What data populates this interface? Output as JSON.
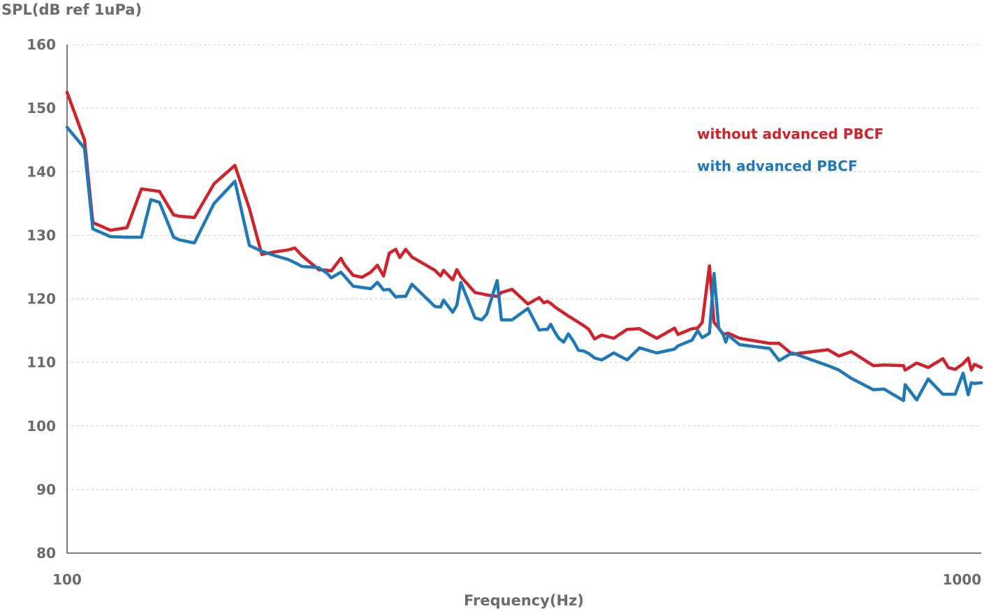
{
  "chart_data": {
    "type": "line",
    "xlabel": "Frequency(Hz)",
    "ylabel": "SPL(dB ref 1uPa)",
    "x_scale": "log",
    "xlim": [
      100,
      1000
    ],
    "ylim": [
      80,
      160
    ],
    "x_ticks": [
      "100",
      "1000"
    ],
    "y_ticks": [
      "160",
      "150",
      "140",
      "130",
      "120",
      "110",
      "100",
      "90",
      "80"
    ],
    "grid": "horizontal-dashed",
    "legend_position": "top-right",
    "series": [
      {
        "name": "without advanced PBCF",
        "color": "#d0222a",
        "x": [
          100,
          104.5,
          106.7,
          109.1,
          111.5,
          116.3,
          120.6,
          123.5,
          126.2,
          130.8,
          132.7,
          137.8,
          144.8,
          152.6,
          158.3,
          163.3,
          168.8,
          174.5,
          177.5,
          180.7,
          188.5,
          192.6,
          194.5,
          199.3,
          201.3,
          205.6,
          210.2,
          214.9,
          218.5,
          221.9,
          225.1,
          228.8,
          231.2,
          234.6,
          238.3,
          252.5,
          256.2,
          258.1,
          264.1,
          266.9,
          269.6,
          279.4,
          284.2,
          287.7,
          295.4,
          298.6,
          306.7,
          319.2,
          328.4,
          332.2,
          335.3,
          338.1,
          341.2,
          345.0,
          349.3,
          353.4,
          358.1,
          362.6,
          367.3,
          372.1,
          377.5,
          384.5,
          396.2,
          409.8,
          422.8,
          441.5,
          461.8,
          465.7,
          482.5,
          489.4,
          495.1,
          504.2,
          510.1,
          516.2,
          521.3,
          525.4,
          528.4,
          543.9,
          587.0,
          601.0,
          621.1,
          679.7,
          698.6,
          720.7,
          761.7,
          782.9,
          822.1,
          825.4,
          849.9,
          874.7,
          907.7,
          920.2,
          936.1,
          955.2,
          967.5,
          975.1,
          982.8,
          1000
        ],
        "y": [
          152.5,
          145,
          132,
          131.4,
          130.8,
          131.2,
          137.3,
          137.1,
          136.9,
          133.2,
          133,
          132.8,
          138.1,
          141,
          134.2,
          127,
          127.4,
          127.7,
          128,
          126.8,
          124.6,
          124.5,
          124.4,
          126.4,
          125.3,
          123.7,
          123.4,
          124.2,
          125.3,
          123.6,
          127.2,
          127.8,
          126.5,
          127.8,
          126.6,
          124.5,
          123.6,
          124.5,
          123,
          124.6,
          123.5,
          121,
          120.8,
          120.6,
          120.4,
          121,
          121.5,
          119.2,
          120.2,
          119.4,
          119.6,
          119.3,
          118.8,
          118.3,
          117.8,
          117.3,
          116.8,
          116.3,
          115.8,
          115.2,
          113.7,
          114.3,
          113.8,
          115.2,
          115.3,
          113.8,
          115.4,
          114.4,
          115.3,
          115.4,
          116.3,
          125.2,
          116.3,
          115.4,
          114.5,
          114.5,
          114.6,
          113.8,
          113,
          113,
          111.3,
          112,
          111,
          111.7,
          109.5,
          109.6,
          109.5,
          108.8,
          109.9,
          109.2,
          110.6,
          109.2,
          108.9,
          109.8,
          110.7,
          108.8,
          109.7,
          109.2
        ],
        "stroke": "#d0222a"
      },
      {
        "name": "with advanced PBCF",
        "color": "#1f78b8",
        "x": [
          100,
          104.5,
          106.7,
          109.1,
          111.5,
          116.3,
          120.6,
          123.5,
          126.2,
          130.8,
          132.7,
          137.8,
          144.8,
          152.6,
          158.3,
          163.3,
          168.8,
          174.5,
          177.5,
          180.7,
          188.5,
          192.6,
          194.5,
          199.3,
          201.3,
          205.6,
          210.2,
          214.9,
          218.5,
          221.9,
          225.1,
          228.8,
          231.2,
          234.6,
          238.3,
          252.5,
          256.2,
          258.1,
          264.1,
          266.9,
          269.6,
          279.4,
          284.2,
          287.7,
          295.4,
          298.6,
          306.7,
          319.2,
          328.4,
          332.2,
          335.3,
          338.1,
          341.2,
          345.0,
          349.3,
          353.4,
          358.1,
          362.6,
          367.3,
          372.1,
          377.5,
          384.5,
          396.2,
          409.8,
          422.8,
          441.5,
          461.8,
          465.7,
          482.5,
          489.4,
          495.1,
          504.2,
          510.1,
          516.2,
          521.3,
          525.4,
          528.4,
          543.9,
          587.0,
          601.0,
          621.1,
          679.7,
          698.6,
          720.7,
          761.7,
          782.9,
          822.1,
          825.4,
          849.9,
          874.7,
          907.7,
          920.2,
          936.1,
          955.2,
          967.5,
          975.1,
          982.8,
          1000
        ],
        "y": [
          147,
          143.7,
          131,
          130.4,
          129.8,
          129.7,
          129.7,
          135.6,
          135.2,
          129.7,
          129.3,
          128.8,
          135,
          138.5,
          128.4,
          127.5,
          126.8,
          126.2,
          125.7,
          125.1,
          124.9,
          124,
          123.3,
          124.2,
          123.5,
          122,
          121.8,
          121.6,
          122.6,
          121.4,
          121.5,
          120.3,
          120.4,
          120.4,
          122.3,
          118.8,
          118.7,
          119.8,
          117.9,
          119,
          122.6,
          117,
          116.7,
          117.6,
          122.9,
          116.7,
          116.7,
          118.5,
          115.1,
          115.2,
          115.2,
          116,
          114.9,
          113.8,
          113.2,
          114.5,
          113.3,
          111.9,
          111.8,
          111.4,
          110.7,
          110.4,
          111.5,
          110.4,
          112.3,
          111.5,
          112.1,
          112.6,
          113.5,
          115,
          113.9,
          114.6,
          124,
          115.3,
          114.6,
          113.2,
          114.3,
          112.8,
          112.2,
          110.3,
          111.5,
          109.5,
          108.8,
          107.5,
          105.7,
          105.8,
          104,
          106.5,
          104.1,
          107.4,
          105,
          105,
          105,
          108.3,
          104.9,
          106.8,
          106.7,
          106.8
        ],
        "stroke": "#1f78b8"
      }
    ]
  }
}
